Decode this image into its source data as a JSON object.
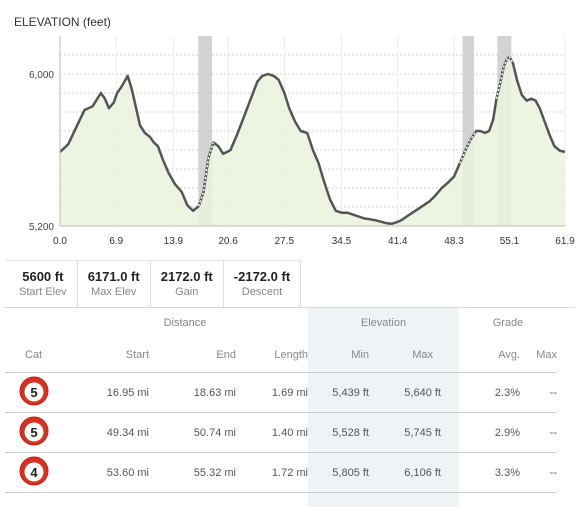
{
  "chart_data": {
    "type": "area",
    "title": "ELEVATION (feet)",
    "xlabel": "",
    "ylabel": "",
    "xlim": [
      0.0,
      61.9
    ],
    "ylim": [
      5200,
      6200
    ],
    "y_ticks": [
      "6,000",
      "5,200"
    ],
    "y_tick_values": [
      6000,
      5200
    ],
    "x_ticks": [
      "0.0",
      "6.9",
      "13.9",
      "20.6",
      "27.5",
      "34.5",
      "41.4",
      "48.3",
      "55.1",
      "61.9"
    ],
    "x_tick_values": [
      0.0,
      6.9,
      13.9,
      20.6,
      27.5,
      34.5,
      41.4,
      48.3,
      55.1,
      61.9
    ],
    "grid": true,
    "line_color": "#555555",
    "fill_color": "#eaf3dd",
    "highlight_color": "#d3d3d3",
    "climb_segments": [
      [
        16.95,
        18.63
      ],
      [
        49.34,
        50.74
      ],
      [
        53.6,
        55.32
      ]
    ],
    "x": [
      0.0,
      1.0,
      2.0,
      3.0,
      4.0,
      5.0,
      5.5,
      6.0,
      6.6,
      7.0,
      7.5,
      8.3,
      8.8,
      9.8,
      10.4,
      11.0,
      11.5,
      12.0,
      12.6,
      13.3,
      14.1,
      14.9,
      15.6,
      16.3,
      17.0,
      17.6,
      18.2,
      18.8,
      19.4,
      20.0,
      20.5,
      20.9,
      21.7,
      22.5,
      23.3,
      24.2,
      24.8,
      25.5,
      26.2,
      26.8,
      27.5,
      28.1,
      28.8,
      29.5,
      30.3,
      31.0,
      31.7,
      32.4,
      33.1,
      33.8,
      34.5,
      35.2,
      35.9,
      36.6,
      37.3,
      38.0,
      38.7,
      39.4,
      40.0,
      40.7,
      41.3,
      41.9,
      42.5,
      43.2,
      43.9,
      44.6,
      45.3,
      46.0,
      46.8,
      47.6,
      48.3,
      49.0,
      49.7,
      50.4,
      51.0,
      51.5,
      52.1,
      52.6,
      53.1,
      53.5,
      54.0,
      54.4,
      54.8,
      55.1,
      55.5,
      56.0,
      56.6,
      57.2,
      57.8,
      58.3,
      58.8,
      59.4,
      60.0,
      60.6,
      61.3,
      61.9
    ],
    "y": [
      5590,
      5630,
      5720,
      5810,
      5830,
      5900,
      5870,
      5820,
      5850,
      5900,
      5930,
      5990,
      5920,
      5730,
      5690,
      5670,
      5640,
      5620,
      5550,
      5480,
      5420,
      5380,
      5310,
      5280,
      5305,
      5380,
      5560,
      5640,
      5620,
      5580,
      5590,
      5600,
      5680,
      5770,
      5860,
      5960,
      5990,
      6000,
      5990,
      5970,
      5900,
      5820,
      5750,
      5700,
      5690,
      5600,
      5530,
      5430,
      5340,
      5280,
      5270,
      5270,
      5260,
      5250,
      5240,
      5235,
      5230,
      5222,
      5215,
      5212,
      5220,
      5232,
      5250,
      5270,
      5290,
      5310,
      5330,
      5360,
      5400,
      5430,
      5460,
      5530,
      5600,
      5660,
      5700,
      5700,
      5690,
      5700,
      5760,
      5870,
      5960,
      6040,
      6080,
      6090,
      6060,
      5970,
      5890,
      5860,
      5870,
      5860,
      5820,
      5750,
      5680,
      5620,
      5595,
      5590
    ]
  },
  "stats": [
    {
      "value": "5600 ft",
      "label": "Start Elev"
    },
    {
      "value": "6171.0 ft",
      "label": "Max Elev"
    },
    {
      "value": "2172.0 ft",
      "label": "Gain"
    },
    {
      "value": "-2172.0 ft",
      "label": "Descent"
    }
  ],
  "table": {
    "groups": {
      "distance": "Distance",
      "elevation": "Elevation",
      "grade": "Grade"
    },
    "headers": {
      "cat": "Cat",
      "start": "Start",
      "end": "End",
      "length": "Length",
      "min": "Min",
      "max": "Max",
      "avg": "Avg.",
      "grade_max": "Max"
    },
    "rows": [
      {
        "cat": "5",
        "start": "16.95 mi",
        "end": "18.63 mi",
        "length": "1.69 mi",
        "min": "5,439 ft",
        "max": "5,640 ft",
        "avg": "2.3%",
        "grade_max": "--"
      },
      {
        "cat": "5",
        "start": "49.34 mi",
        "end": "50.74 mi",
        "length": "1.40 mi",
        "min": "5,528 ft",
        "max": "5,745 ft",
        "avg": "2.9%",
        "grade_max": "--"
      },
      {
        "cat": "4",
        "start": "53.60 mi",
        "end": "55.32 mi",
        "length": "1.72 mi",
        "min": "5,805 ft",
        "max": "6,106 ft",
        "avg": "3.3%",
        "grade_max": "--"
      }
    ]
  },
  "icons": {
    "category": "climb-category-icon"
  },
  "colors": {
    "icon_red": "#d8321f",
    "elevation_bg": "#eef3f6"
  }
}
